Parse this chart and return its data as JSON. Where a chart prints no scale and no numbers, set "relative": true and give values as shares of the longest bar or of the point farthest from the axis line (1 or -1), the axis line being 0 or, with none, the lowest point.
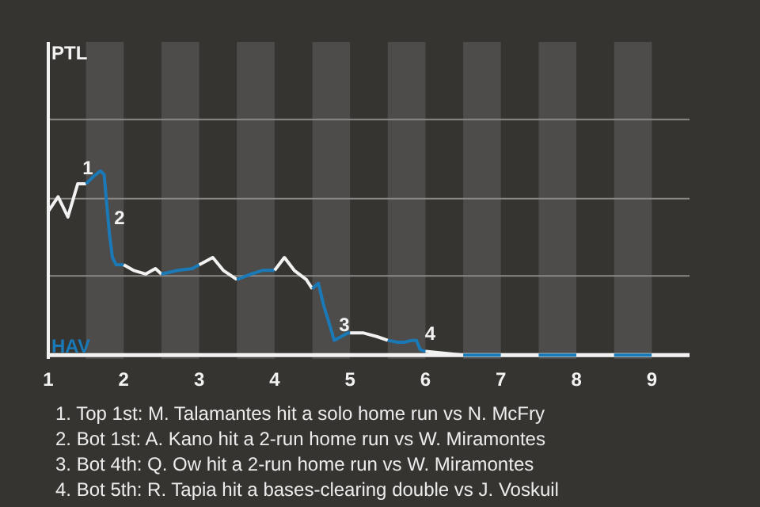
{
  "chart_data": {
    "type": "line",
    "relative": true,
    "xlim": [
      1,
      9.5
    ],
    "xticks": [
      {
        "value": 1,
        "label": "1"
      },
      {
        "value": 2,
        "label": "2"
      },
      {
        "value": 3,
        "label": "3"
      },
      {
        "value": 4,
        "label": "4"
      },
      {
        "value": 5,
        "label": "5"
      },
      {
        "value": 6,
        "label": "6"
      },
      {
        "value": 7,
        "label": "7"
      },
      {
        "value": 8,
        "label": "8"
      },
      {
        "value": 9,
        "label": "9"
      }
    ],
    "marker": "none",
    "line_style": "solid",
    "ref_lines": [
      {
        "axis": "y",
        "value": 0.43,
        "color": "#8a8886"
      },
      {
        "axis": "y",
        "value": 0.85,
        "color": "#8a8886"
      },
      {
        "axis": "y",
        "value": 1.28,
        "color": "#8a8886"
      }
    ],
    "bands": [
      {
        "axis": "x",
        "from": 1.5,
        "to": 2,
        "color": "#4d4c4a"
      },
      {
        "axis": "x",
        "from": 2.5,
        "to": 3,
        "color": "#4d4c4a"
      },
      {
        "axis": "x",
        "from": 3.5,
        "to": 4,
        "color": "#4d4c4a"
      },
      {
        "axis": "x",
        "from": 4.5,
        "to": 5,
        "color": "#4d4c4a"
      },
      {
        "axis": "x",
        "from": 5.5,
        "to": 6,
        "color": "#4d4c4a"
      },
      {
        "axis": "x",
        "from": 6.5,
        "to": 7,
        "color": "#4d4c4a"
      },
      {
        "axis": "x",
        "from": 7.5,
        "to": 8,
        "color": "#4d4c4a"
      },
      {
        "axis": "x",
        "from": 8.5,
        "to": 9,
        "color": "#4d4c4a"
      }
    ],
    "series": [
      {
        "color": "#f2f2f2",
        "x": [
          1,
          1.13,
          1.26,
          1.39,
          1.5
        ],
        "values": [
          0.78,
          0.86,
          0.75,
          0.93,
          0.93
        ]
      },
      {
        "color": "#1a7ab8",
        "x": [
          1.5,
          1.6,
          1.69,
          1.74,
          1.81,
          1.85,
          1.9,
          2
        ],
        "values": [
          0.93,
          0.97,
          1,
          0.98,
          0.66,
          0.53,
          0.49,
          0.49
        ]
      },
      {
        "color": "#f2f2f2",
        "x": [
          2,
          2.13,
          2.29,
          2.42,
          2.5
        ],
        "values": [
          0.49,
          0.46,
          0.44,
          0.47,
          0.44
        ]
      },
      {
        "color": "#1a7ab8",
        "x": [
          2.5,
          2.72,
          2.91,
          3
        ],
        "values": [
          0.44,
          0.46,
          0.47,
          0.49
        ]
      },
      {
        "color": "#f2f2f2",
        "x": [
          3,
          3.18,
          3.32,
          3.5
        ],
        "values": [
          0.49,
          0.53,
          0.46,
          0.41
        ]
      },
      {
        "color": "#1a7ab8",
        "x": [
          3.5,
          3.69,
          3.84,
          4
        ],
        "values": [
          0.41,
          0.44,
          0.46,
          0.46
        ]
      },
      {
        "color": "#f2f2f2",
        "x": [
          4,
          4.13,
          4.26,
          4.42,
          4.5
        ],
        "values": [
          0.46,
          0.53,
          0.46,
          0.41,
          0.36
        ]
      },
      {
        "color": "#1a7ab8",
        "x": [
          4.5,
          4.58,
          4.65,
          4.74,
          4.79,
          4.88,
          4.97,
          5
        ],
        "values": [
          0.36,
          0.39,
          0.27,
          0.15,
          0.08,
          0.1,
          0.12,
          0.12
        ]
      },
      {
        "color": "#f2f2f2",
        "x": [
          5,
          5.18,
          5.36,
          5.5
        ],
        "values": [
          0.12,
          0.12,
          0.1,
          0.08
        ]
      },
      {
        "color": "#1a7ab8",
        "x": [
          5.5,
          5.63,
          5.72,
          5.82,
          5.88,
          5.93,
          6
        ],
        "values": [
          0.08,
          0.07,
          0.07,
          0.08,
          0.08,
          0.03,
          0.02
        ]
      },
      {
        "color": "#f2f2f2",
        "x": [
          6,
          6.5
        ],
        "values": [
          0.02,
          0
        ]
      },
      {
        "color": "#1a7ab8",
        "x": [
          6.5,
          7
        ],
        "values": [
          0,
          0
        ]
      },
      {
        "color": "#f2f2f2",
        "x": [
          7,
          7.5
        ],
        "values": [
          0,
          0
        ]
      },
      {
        "color": "#1a7ab8",
        "x": [
          7.5,
          8
        ],
        "values": [
          0,
          0
        ]
      },
      {
        "color": "#f2f2f2",
        "x": [
          8,
          8.5
        ],
        "values": [
          0,
          0
        ]
      },
      {
        "color": "#1a7ab8",
        "x": [
          8.5,
          9
        ],
        "values": [
          0,
          0
        ]
      },
      {
        "color": "#f2f2f2",
        "x": [
          9,
          9.5
        ],
        "values": [
          0,
          0
        ]
      }
    ],
    "annotations": [
      "PTL",
      "HAV",
      {
        "text": "1",
        "x": 1.39,
        "y": 0.93
      },
      {
        "text": "2",
        "x": 1.81,
        "y": 0.66
      },
      {
        "text": "3",
        "x": 4.79,
        "y": 0.08
      },
      {
        "text": "4",
        "x": 5.93,
        "y": 0.03
      },
      "1. Top 1st: M. Talamantes hit a solo home run vs N. McFry",
      "2. Bot 1st: A. Kano hit a 2-run home run vs W. Miramontes",
      "3. Bot 4th: Q. Ow hit a 2-run home run vs W. Miramontes",
      "4. Bot 5th: R. Tapia hit a bases-clearing double vs J. Voskuil"
    ]
  }
}
